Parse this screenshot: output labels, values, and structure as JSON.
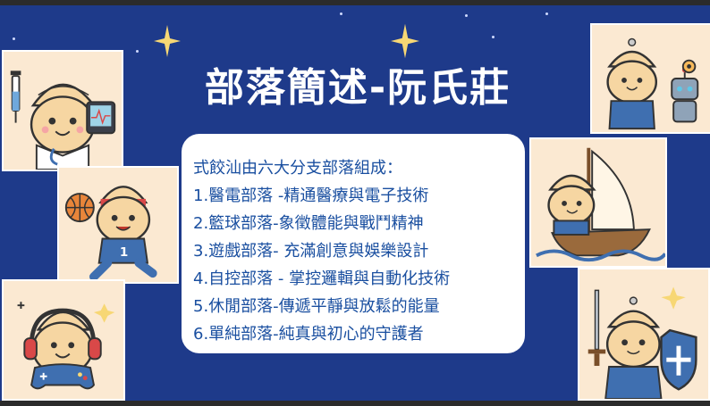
{
  "slide": {
    "title": "部落簡述-阮氏莊",
    "lines": [
      "式餃汕由六大分支部落組成：",
      "1.醫電部落 -精通醫療與電子技術",
      "2.籃球部落-象徵體能與戰鬥精神",
      "3.遊戲部落- 充滿創意與娛樂設計",
      "4.自控部落 - 掌控邏輯與自動化技術",
      "5.休閒部落-傳遞平靜與放鬆的能量",
      "6.單純部落-純真與初心的守護者"
    ]
  },
  "colors": {
    "background": "#1e3a8a",
    "card": "#ffffff",
    "card_text": "#1a4fa0",
    "title_text": "#ffffff",
    "tile_bg": "#fbe9d2",
    "character_skin": "#f6d6a2",
    "character_outfit": "#3f6fb0"
  },
  "illustrations": [
    {
      "name": "medical-electronics-dumpling",
      "icons": [
        "syringe-icon",
        "stethoscope-icon",
        "monitor-icon"
      ]
    },
    {
      "name": "basketball-dumpling",
      "icons": [
        "basketball-icon"
      ]
    },
    {
      "name": "gamer-dumpling",
      "icons": [
        "headphones-icon",
        "gamepad-icon"
      ]
    },
    {
      "name": "control-dumpling",
      "icons": [
        "robot-icon",
        "gear-icon"
      ]
    },
    {
      "name": "sailing-dumpling",
      "icons": [
        "sailboat-icon"
      ]
    },
    {
      "name": "guardian-dumpling",
      "icons": [
        "sword-icon",
        "shield-cross-icon"
      ]
    }
  ]
}
